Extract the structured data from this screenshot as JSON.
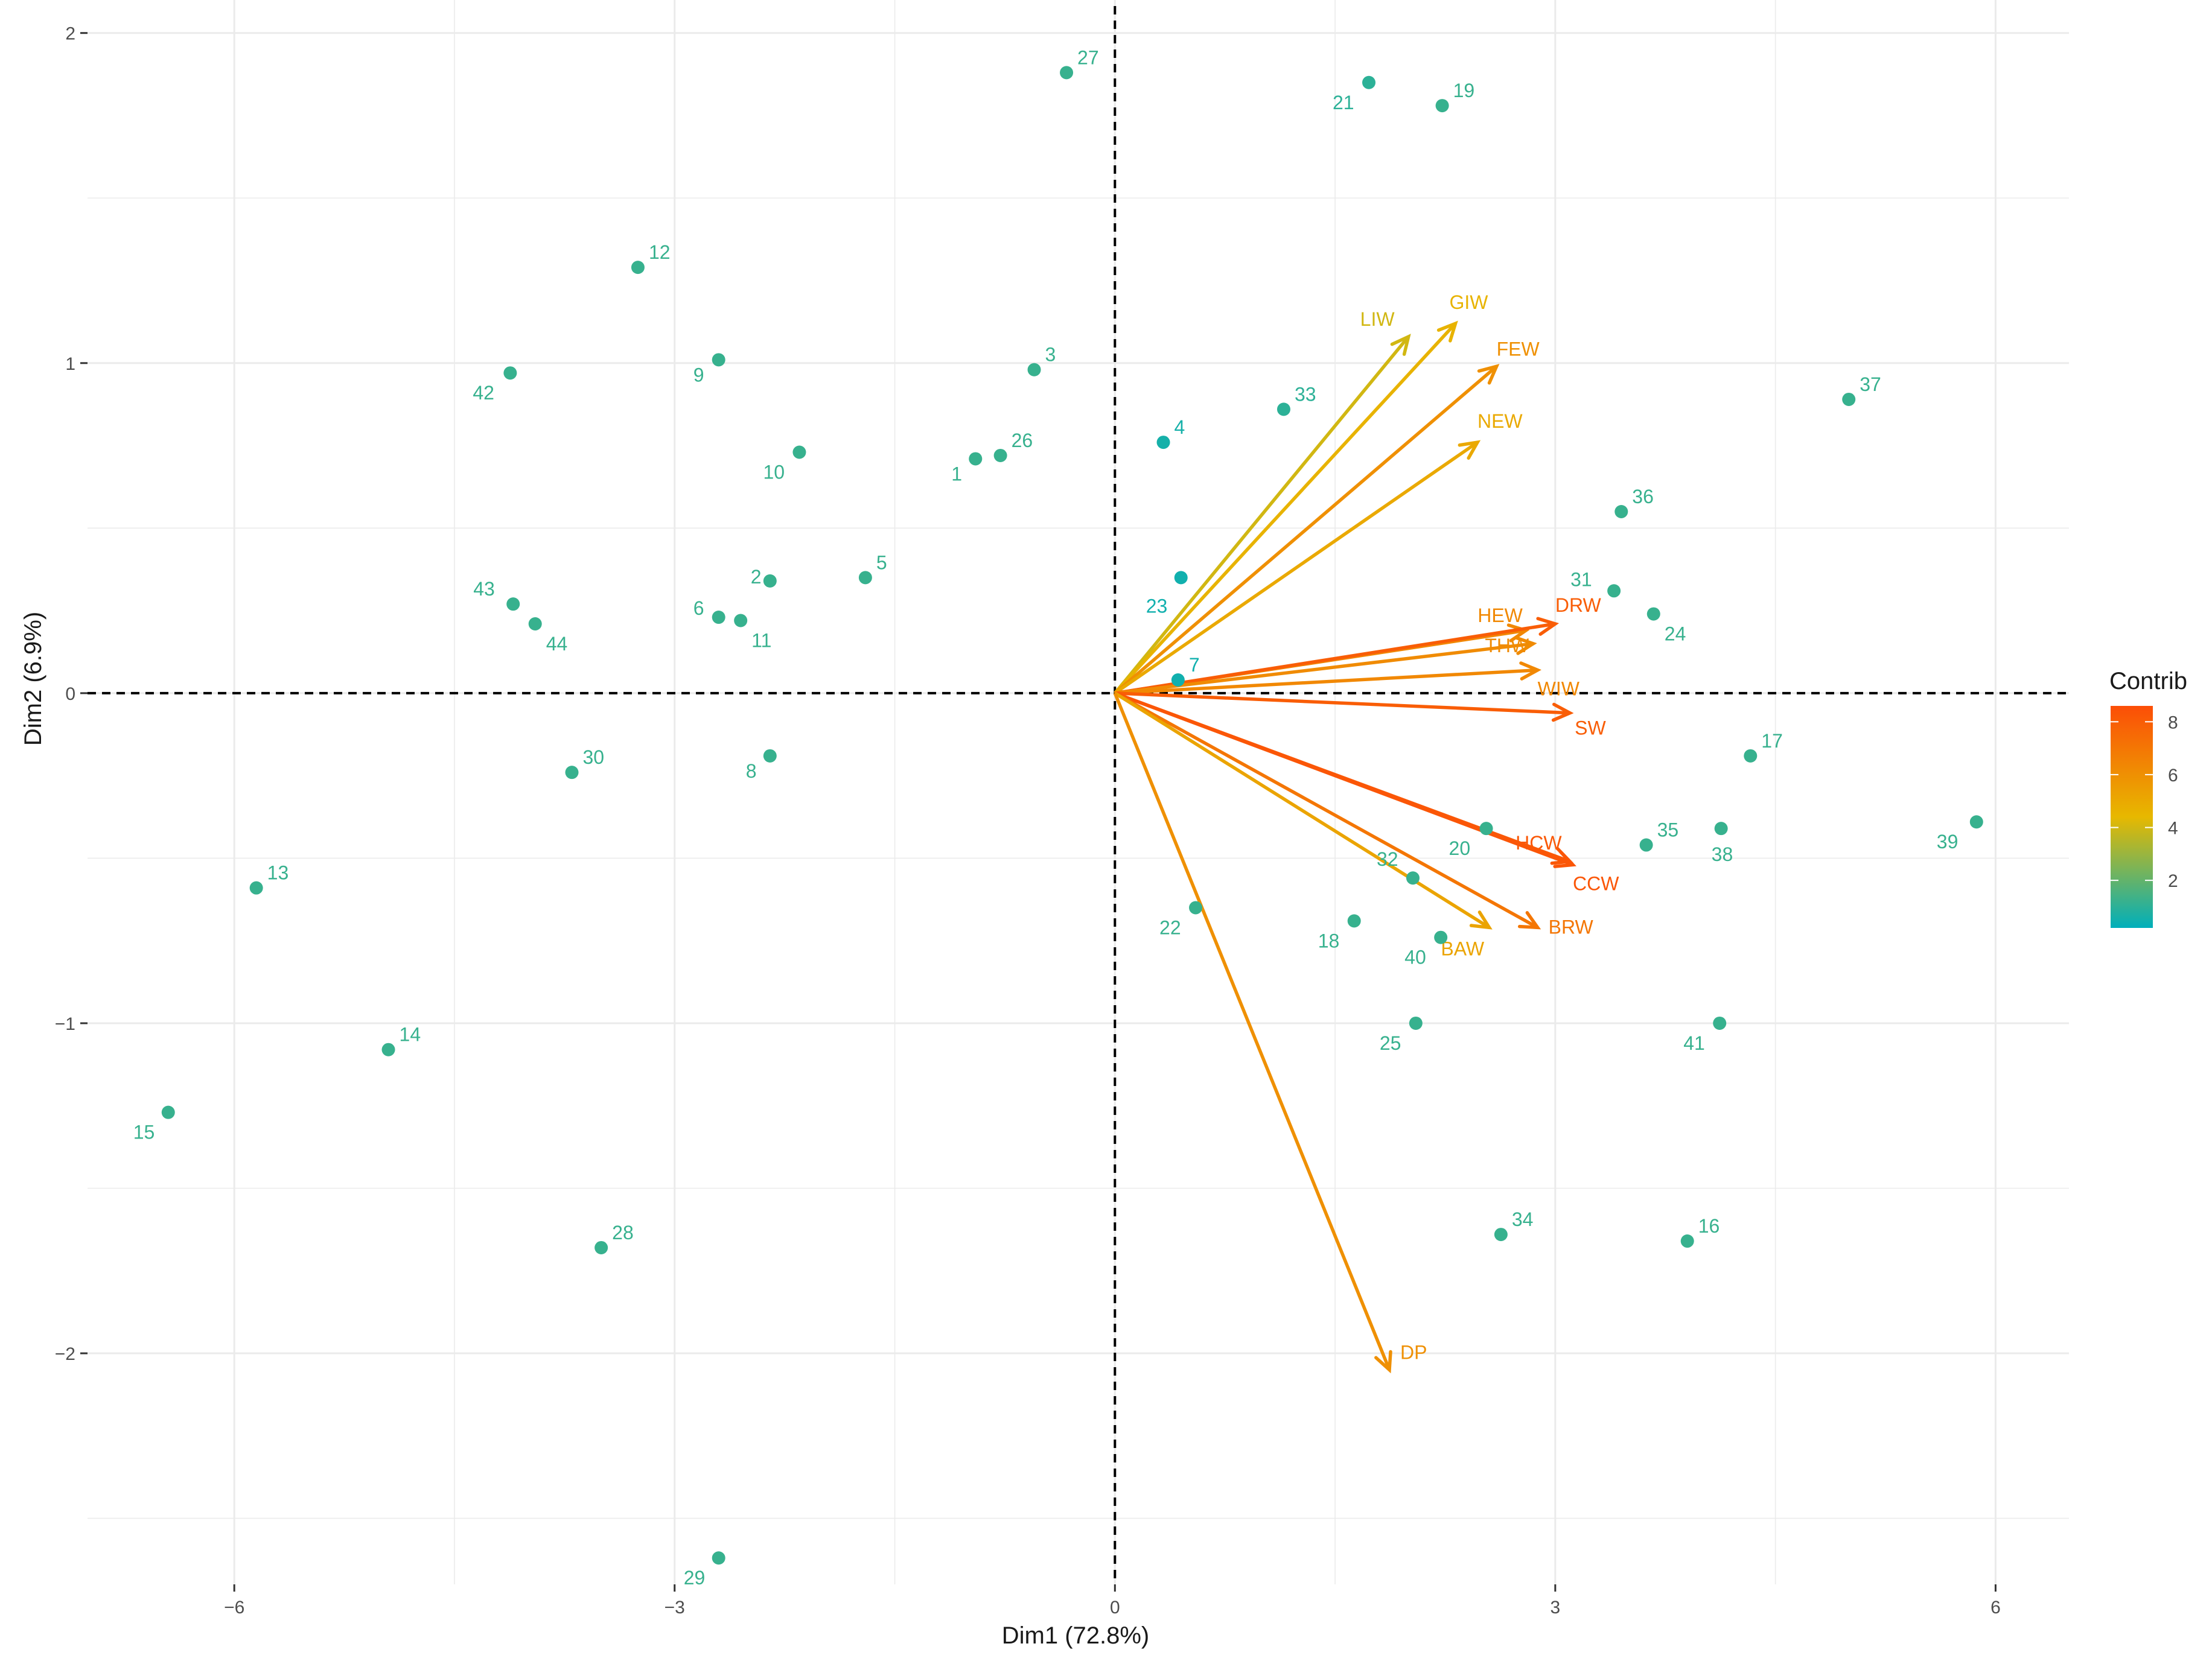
{
  "chart_data": {
    "type": "scatter",
    "title": "",
    "xlabel": "Dim1 (72.8%)",
    "ylabel": "Dim2 (6.9%)",
    "xlim": [
      -7.0,
      6.5
    ],
    "ylim": [
      -2.7,
      2.1
    ],
    "x_ticks": [
      -6,
      -3,
      0,
      3,
      6
    ],
    "x_tick_labels": [
      "−6",
      "−3",
      "0",
      "3",
      "6"
    ],
    "y_ticks": [
      2,
      1,
      0,
      -1,
      -2
    ],
    "y_tick_labels": [
      "2",
      "1",
      "0",
      "−1",
      "−2"
    ],
    "grid": true,
    "reference_lines": {
      "x": 0,
      "y": 0,
      "style": "dashed"
    },
    "individuals": [
      {
        "label": "1",
        "x": -0.95,
        "y": 0.71,
        "contrib": 1.2
      },
      {
        "label": "2",
        "x": -2.35,
        "y": 0.34,
        "contrib": 1.2
      },
      {
        "label": "3",
        "x": -0.55,
        "y": 0.98,
        "contrib": 1.2
      },
      {
        "label": "4",
        "x": 0.33,
        "y": 0.76,
        "contrib": 0.6
      },
      {
        "label": "5",
        "x": -1.7,
        "y": 0.35,
        "contrib": 1.2
      },
      {
        "label": "6",
        "x": -2.7,
        "y": 0.23,
        "contrib": 1.2
      },
      {
        "label": "7",
        "x": 0.43,
        "y": 0.04,
        "contrib": 0.5
      },
      {
        "label": "8",
        "x": -2.35,
        "y": -0.19,
        "contrib": 1.2
      },
      {
        "label": "9",
        "x": -2.7,
        "y": 1.01,
        "contrib": 1.2
      },
      {
        "label": "10",
        "x": -2.15,
        "y": 0.73,
        "contrib": 1.2
      },
      {
        "label": "11",
        "x": -2.55,
        "y": 0.22,
        "contrib": 1.2
      },
      {
        "label": "12",
        "x": -3.25,
        "y": 1.29,
        "contrib": 1.2
      },
      {
        "label": "13",
        "x": -5.85,
        "y": -0.59,
        "contrib": 1.2
      },
      {
        "label": "14",
        "x": -4.95,
        "y": -1.08,
        "contrib": 1.2
      },
      {
        "label": "15",
        "x": -6.45,
        "y": -1.27,
        "contrib": 1.2
      },
      {
        "label": "16",
        "x": 3.9,
        "y": -1.66,
        "contrib": 1.2
      },
      {
        "label": "17",
        "x": 4.33,
        "y": -0.19,
        "contrib": 1.2
      },
      {
        "label": "18",
        "x": 1.63,
        "y": -0.69,
        "contrib": 1.2
      },
      {
        "label": "19",
        "x": 2.23,
        "y": 1.78,
        "contrib": 1.2
      },
      {
        "label": "20",
        "x": 2.53,
        "y": -0.41,
        "contrib": 1.2
      },
      {
        "label": "21",
        "x": 1.73,
        "y": 1.85,
        "contrib": 1.0
      },
      {
        "label": "22",
        "x": 0.55,
        "y": -0.65,
        "contrib": 1.2
      },
      {
        "label": "23",
        "x": 0.45,
        "y": 0.35,
        "contrib": 0.5
      },
      {
        "label": "24",
        "x": 3.67,
        "y": 0.24,
        "contrib": 1.2
      },
      {
        "label": "25",
        "x": 2.05,
        "y": -1.0,
        "contrib": 1.2
      },
      {
        "label": "26",
        "x": -0.78,
        "y": 0.72,
        "contrib": 1.2
      },
      {
        "label": "27",
        "x": -0.33,
        "y": 1.88,
        "contrib": 1.2
      },
      {
        "label": "28",
        "x": -3.5,
        "y": -1.68,
        "contrib": 1.2
      },
      {
        "label": "29",
        "x": -2.7,
        "y": -2.62,
        "contrib": 1.2
      },
      {
        "label": "30",
        "x": -3.7,
        "y": -0.24,
        "contrib": 1.2
      },
      {
        "label": "31",
        "x": 3.4,
        "y": 0.31,
        "contrib": 1.2
      },
      {
        "label": "32",
        "x": 2.03,
        "y": -0.56,
        "contrib": 1.2
      },
      {
        "label": "33",
        "x": 1.15,
        "y": 0.86,
        "contrib": 1.0
      },
      {
        "label": "34",
        "x": 2.63,
        "y": -1.64,
        "contrib": 1.2
      },
      {
        "label": "35",
        "x": 3.62,
        "y": -0.46,
        "contrib": 1.2
      },
      {
        "label": "36",
        "x": 3.45,
        "y": 0.55,
        "contrib": 1.2
      },
      {
        "label": "37",
        "x": 5.0,
        "y": 0.89,
        "contrib": 1.2
      },
      {
        "label": "38",
        "x": 4.13,
        "y": -0.41,
        "contrib": 1.2
      },
      {
        "label": "39",
        "x": 5.87,
        "y": -0.39,
        "contrib": 1.2
      },
      {
        "label": "40",
        "x": 2.22,
        "y": -0.74,
        "contrib": 1.2
      },
      {
        "label": "41",
        "x": 4.12,
        "y": -1.0,
        "contrib": 1.2
      },
      {
        "label": "42",
        "x": -4.12,
        "y": 0.97,
        "contrib": 1.2
      },
      {
        "label": "43",
        "x": -4.1,
        "y": 0.27,
        "contrib": 1.2
      },
      {
        "label": "44",
        "x": -3.95,
        "y": 0.21,
        "contrib": 1.2
      }
    ],
    "variables": [
      {
        "label": "LIW",
        "x": 2.0,
        "y": 1.08,
        "contrib": 4.0
      },
      {
        "label": "GIW",
        "x": 2.32,
        "y": 1.12,
        "contrib": 4.6
      },
      {
        "label": "FEW",
        "x": 2.6,
        "y": 0.99,
        "contrib": 6.0
      },
      {
        "label": "NEW",
        "x": 2.47,
        "y": 0.76,
        "contrib": 5.0
      },
      {
        "label": "HEW",
        "x": 2.8,
        "y": 0.19,
        "contrib": 6.3
      },
      {
        "label": "DRW",
        "x": 3.0,
        "y": 0.21,
        "contrib": 8.0
      },
      {
        "label": "THW",
        "x": 2.85,
        "y": 0.15,
        "contrib": 6.2
      },
      {
        "label": "WIW",
        "x": 2.88,
        "y": 0.07,
        "contrib": 6.3
      },
      {
        "label": "SW",
        "x": 3.1,
        "y": -0.06,
        "contrib": 8.0
      },
      {
        "label": "HCW",
        "x": 3.1,
        "y": -0.51,
        "contrib": 8.2
      },
      {
        "label": "CCW",
        "x": 3.12,
        "y": -0.52,
        "contrib": 8.3
      },
      {
        "label": "BRW",
        "x": 2.88,
        "y": -0.71,
        "contrib": 7.0
      },
      {
        "label": "BAW",
        "x": 2.55,
        "y": -0.71,
        "contrib": 5.2
      },
      {
        "label": "DP",
        "x": 1.87,
        "y": -2.05,
        "contrib": 6.0
      }
    ],
    "legend": {
      "title": "Contrib",
      "position": "right",
      "type": "gradient",
      "ticks": [
        2,
        4,
        6,
        8
      ],
      "tick_labels": [
        "2",
        "4",
        "6",
        "8"
      ],
      "range": [
        0.2,
        8.6
      ],
      "colors": [
        "#00AFBB",
        "#E7B800",
        "#FC4E07"
      ]
    }
  }
}
